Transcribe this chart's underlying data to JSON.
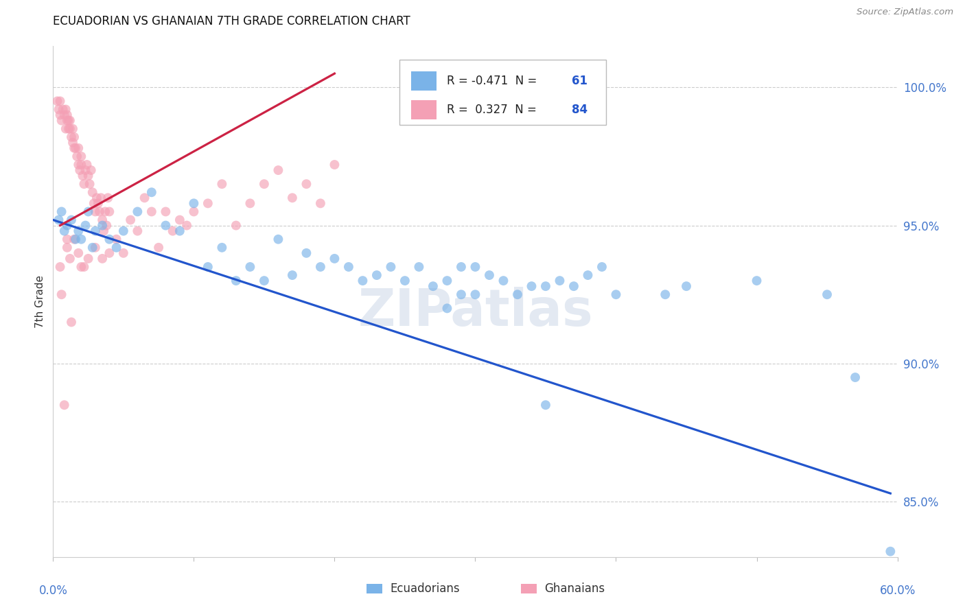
{
  "title": "ECUADORIAN VS GHANAIAN 7TH GRADE CORRELATION CHART",
  "source": "Source: ZipAtlas.com",
  "ylabel": "7th Grade",
  "y_ticks": [
    85.0,
    90.0,
    95.0,
    100.0
  ],
  "y_tick_labels": [
    "85.0%",
    "90.0%",
    "95.0%",
    "100.0%"
  ],
  "x_range": [
    0.0,
    60.0
  ],
  "y_range": [
    83.0,
    101.5
  ],
  "blue_R": -0.471,
  "blue_N": 61,
  "pink_R": 0.327,
  "pink_N": 84,
  "legend_label_blue": "Ecuadorians",
  "legend_label_pink": "Ghanaians",
  "blue_color": "#7ab3e8",
  "pink_color": "#f4a0b5",
  "blue_line_color": "#2255cc",
  "pink_line_color": "#cc2244",
  "tick_color": "#4477cc",
  "blue_line_x0": 0.0,
  "blue_line_y0": 95.2,
  "blue_line_x1": 59.5,
  "blue_line_y1": 85.3,
  "pink_line_x0": 0.5,
  "pink_line_y0": 95.0,
  "pink_line_x1": 20.0,
  "pink_line_y1": 100.5,
  "blue_x": [
    0.4,
    0.6,
    0.8,
    1.0,
    1.3,
    1.6,
    1.8,
    2.0,
    2.3,
    2.5,
    2.8,
    3.0,
    3.5,
    4.0,
    4.5,
    5.0,
    6.0,
    7.0,
    8.0,
    9.0,
    10.0,
    11.0,
    12.0,
    13.0,
    14.0,
    15.0,
    16.0,
    17.0,
    18.0,
    19.0,
    20.0,
    21.0,
    22.0,
    23.0,
    24.0,
    25.0,
    26.0,
    27.0,
    28.0,
    29.0,
    30.0,
    31.0,
    32.0,
    33.0,
    34.0,
    35.0,
    36.0,
    37.0,
    38.0,
    39.0,
    40.0,
    28.0,
    30.0,
    35.0,
    43.5,
    45.0,
    50.0,
    55.0,
    57.0,
    59.5,
    29.0
  ],
  "blue_y": [
    95.2,
    95.5,
    94.8,
    95.0,
    95.2,
    94.5,
    94.8,
    94.5,
    95.0,
    95.5,
    94.2,
    94.8,
    95.0,
    94.5,
    94.2,
    94.8,
    95.5,
    96.2,
    95.0,
    94.8,
    95.8,
    93.5,
    94.2,
    93.0,
    93.5,
    93.0,
    94.5,
    93.2,
    94.0,
    93.5,
    93.8,
    93.5,
    93.0,
    93.2,
    93.5,
    93.0,
    93.5,
    92.8,
    93.0,
    93.5,
    92.5,
    93.2,
    93.0,
    92.5,
    92.8,
    88.5,
    93.0,
    92.8,
    93.2,
    93.5,
    92.5,
    92.0,
    93.5,
    92.8,
    92.5,
    92.8,
    93.0,
    92.5,
    89.5,
    83.2,
    92.5
  ],
  "pink_x": [
    0.3,
    0.4,
    0.5,
    0.5,
    0.6,
    0.7,
    0.8,
    0.9,
    0.9,
    1.0,
    1.0,
    1.1,
    1.1,
    1.2,
    1.2,
    1.3,
    1.4,
    1.4,
    1.5,
    1.5,
    1.6,
    1.7,
    1.8,
    1.8,
    1.9,
    2.0,
    2.0,
    2.1,
    2.2,
    2.3,
    2.4,
    2.5,
    2.6,
    2.7,
    2.8,
    2.9,
    3.0,
    3.1,
    3.2,
    3.3,
    3.4,
    3.5,
    3.6,
    3.7,
    3.8,
    3.9,
    4.0,
    4.5,
    5.0,
    5.5,
    6.0,
    6.5,
    7.0,
    7.5,
    8.0,
    8.5,
    9.0,
    9.5,
    10.0,
    11.0,
    12.0,
    13.0,
    14.0,
    15.0,
    16.0,
    17.0,
    18.0,
    19.0,
    20.0,
    1.0,
    1.0,
    1.2,
    1.5,
    1.8,
    2.0,
    2.5,
    3.0,
    0.5,
    4.0,
    3.5,
    0.8,
    1.3,
    0.6,
    2.2
  ],
  "pink_y": [
    99.5,
    99.2,
    99.0,
    99.5,
    98.8,
    99.2,
    99.0,
    98.5,
    99.2,
    98.8,
    99.0,
    98.5,
    98.8,
    98.5,
    98.8,
    98.2,
    98.0,
    98.5,
    97.8,
    98.2,
    97.8,
    97.5,
    97.2,
    97.8,
    97.0,
    97.2,
    97.5,
    96.8,
    96.5,
    97.0,
    97.2,
    96.8,
    96.5,
    97.0,
    96.2,
    95.8,
    95.5,
    96.0,
    95.8,
    95.5,
    96.0,
    95.2,
    94.8,
    95.5,
    95.0,
    96.0,
    95.5,
    94.5,
    94.0,
    95.2,
    94.8,
    96.0,
    95.5,
    94.2,
    95.5,
    94.8,
    95.2,
    95.0,
    95.5,
    95.8,
    96.5,
    95.0,
    95.8,
    96.5,
    97.0,
    96.0,
    96.5,
    95.8,
    97.2,
    94.5,
    94.2,
    93.8,
    94.5,
    94.0,
    93.5,
    93.8,
    94.2,
    93.5,
    94.0,
    93.8,
    88.5,
    91.5,
    92.5,
    93.5
  ]
}
